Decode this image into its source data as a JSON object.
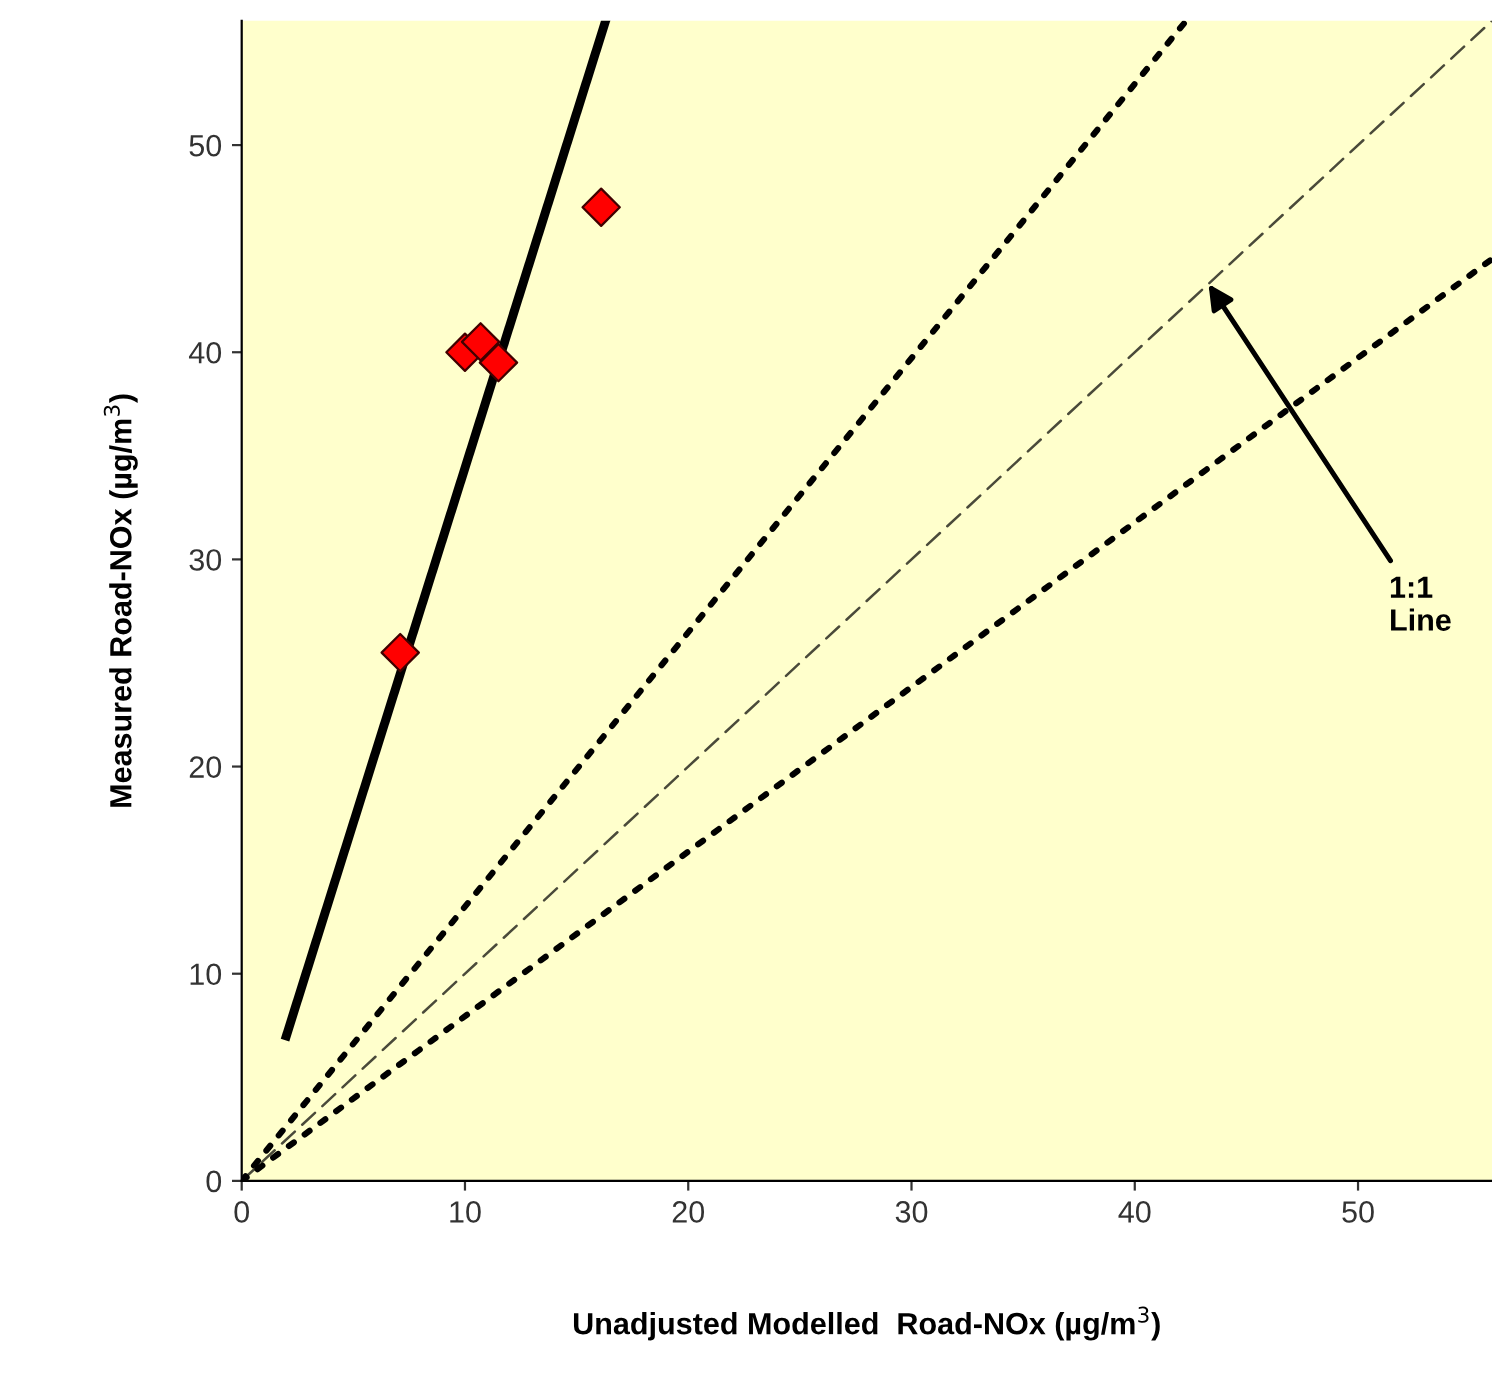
{
  "chart_data": {
    "type": "scatter",
    "xlabel": "Unadjusted Modelled  Road-NOx (µg/m$^{3}$)",
    "ylabel": "Measured Road-NOx (µg/m$^{3}$)",
    "xlim": [
      0,
      56
    ],
    "ylim": [
      0,
      56
    ],
    "xticks": [
      0,
      10,
      20,
      30,
      40,
      50
    ],
    "yticks": [
      0,
      10,
      20,
      30,
      40,
      50
    ],
    "grid": false,
    "legend": false,
    "series": [
      {
        "type": "line",
        "x": [
          2,
          16.3
        ],
        "values": [
          7,
          56
        ],
        "color": "#000000",
        "line_style": "solid",
        "marker": "none"
      },
      {
        "type": "line",
        "x": [
          0,
          42.3
        ],
        "values": [
          0,
          56
        ],
        "color": "#000000",
        "line_style": "dotted",
        "marker": "none"
      },
      {
        "type": "line",
        "x": [
          0,
          56
        ],
        "values": [
          0,
          56
        ],
        "color": "#4a4a3a",
        "line_style": "dashed",
        "marker": "none"
      },
      {
        "type": "line",
        "x": [
          0,
          56
        ],
        "values": [
          0,
          44.5
        ],
        "color": "#000000",
        "line_style": "dotted",
        "marker": "none"
      },
      {
        "x": [
          7.1,
          10.0,
          10.7,
          11.5,
          16.1
        ],
        "values": [
          25.5,
          40,
          40.5,
          39.5,
          47
        ],
        "color": "#ff0000",
        "marker": "diamond"
      }
    ],
    "annotations": [
      {
        "text": "1:1\nLine",
        "x": 43.3,
        "y": 43.3
      }
    ]
  }
}
